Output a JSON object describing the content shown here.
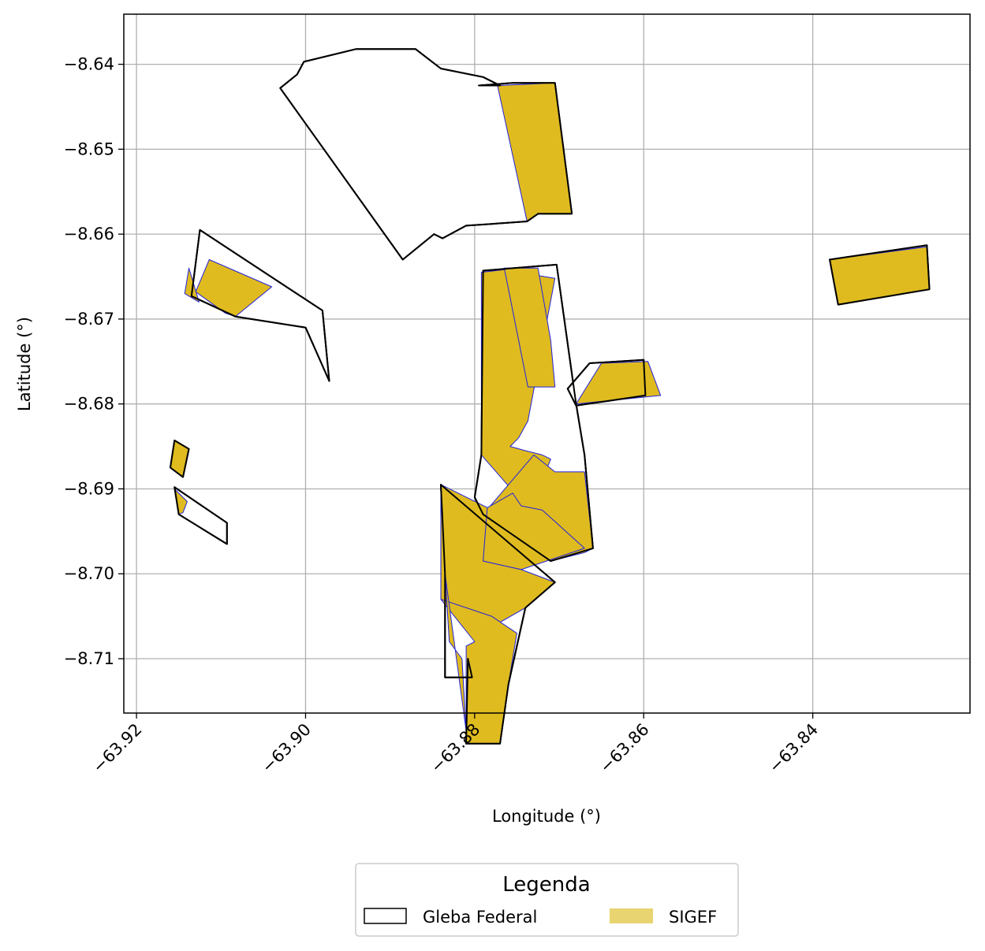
{
  "chart_data": {
    "type": "map",
    "xlabel": "Longitude (°)",
    "ylabel": "Latitude (°)",
    "xlim": [
      -63.9215,
      -63.8214
    ],
    "ylim": [
      -8.7164,
      -8.6341
    ],
    "xticks": [
      -63.92,
      -63.9,
      -63.88,
      -63.86,
      -63.84
    ],
    "xtick_labels": [
      "−63.92",
      "−63.90",
      "−63.88",
      "−63.86",
      "−63.84"
    ],
    "yticks": [
      -8.64,
      -8.65,
      -8.66,
      -8.67,
      -8.68,
      -8.69,
      -8.7,
      -8.71
    ],
    "ytick_labels": [
      "−8.64",
      "−8.65",
      "−8.66",
      "−8.67",
      "−8.68",
      "−8.69",
      "−8.70",
      "−8.71"
    ],
    "grid": true,
    "colors": {
      "gleba_edge": "#000000",
      "sigef_fill": "#dfbb1f",
      "sigef_edge": "#2222dd",
      "legend_sigef_patch": "#e8d470",
      "grid": "#b0b0b0"
    },
    "legend": {
      "title": "Legenda",
      "placement": "bottom-center",
      "entries": [
        {
          "label": "Gleba Federal",
          "style": "outline"
        },
        {
          "label": "SIGEF",
          "style": "fill"
        }
      ]
    },
    "layers": {
      "sigef": [
        [
          [
            -63.8773,
            -8.6425
          ],
          [
            -63.8705,
            -8.6422
          ],
          [
            -63.8685,
            -8.6576
          ],
          [
            -63.8725,
            -8.6576
          ],
          [
            -63.8738,
            -8.6585
          ],
          [
            -63.8773,
            -8.6425
          ]
        ],
        [
          [
            -63.9114,
            -8.663
          ],
          [
            -63.913,
            -8.6668
          ],
          [
            -63.9095,
            -8.6693
          ],
          [
            -63.9083,
            -8.6697
          ],
          [
            -63.904,
            -8.6662
          ],
          [
            -63.9114,
            -8.663
          ]
        ],
        [
          [
            -63.9138,
            -8.664
          ],
          [
            -63.9143,
            -8.667
          ],
          [
            -63.9126,
            -8.668
          ],
          [
            -63.9135,
            -8.665
          ],
          [
            -63.9138,
            -8.664
          ]
        ],
        [
          [
            -63.8792,
            -8.6645
          ],
          [
            -63.875,
            -8.664
          ],
          [
            -63.8748,
            -8.6645
          ],
          [
            -63.8705,
            -8.6652
          ],
          [
            -63.8737,
            -8.682
          ],
          [
            -63.8748,
            -8.684
          ],
          [
            -63.8758,
            -8.685
          ],
          [
            -63.874,
            -8.6855
          ],
          [
            -63.872,
            -8.686
          ],
          [
            -63.871,
            -8.6865
          ],
          [
            -63.8716,
            -8.688
          ],
          [
            -63.8703,
            -8.689
          ],
          [
            -63.8707,
            -8.6905
          ],
          [
            -63.8735,
            -8.6925
          ],
          [
            -63.8792,
            -8.686
          ],
          [
            -63.8792,
            -8.6645
          ]
        ],
        [
          [
            -63.8765,
            -8.664
          ],
          [
            -63.8725,
            -8.664
          ],
          [
            -63.871,
            -8.6725
          ],
          [
            -63.8705,
            -8.678
          ],
          [
            -63.8737,
            -8.678
          ],
          [
            -63.8765,
            -8.664
          ]
        ],
        [
          [
            -63.865,
            -8.6752
          ],
          [
            -63.8595,
            -8.675
          ],
          [
            -63.858,
            -8.679
          ],
          [
            -63.868,
            -8.68
          ],
          [
            -63.865,
            -8.6752
          ]
        ],
        [
          [
            -63.838,
            -8.663
          ],
          [
            -63.8265,
            -8.6615
          ],
          [
            -63.8262,
            -8.6665
          ],
          [
            -63.837,
            -8.6683
          ],
          [
            -63.838,
            -8.663
          ]
        ],
        [
          [
            -63.9155,
            -8.6843
          ],
          [
            -63.916,
            -8.6875
          ],
          [
            -63.9145,
            -8.6886
          ],
          [
            -63.9138,
            -8.6853
          ],
          [
            -63.9155,
            -8.6843
          ]
        ],
        [
          [
            -63.9155,
            -8.69
          ],
          [
            -63.915,
            -8.693
          ],
          [
            -63.9145,
            -8.6928
          ],
          [
            -63.914,
            -8.6915
          ],
          [
            -63.9155,
            -8.69
          ]
        ],
        [
          [
            -63.873,
            -8.686
          ],
          [
            -63.8705,
            -8.688
          ],
          [
            -63.867,
            -8.688
          ],
          [
            -63.866,
            -8.697
          ],
          [
            -63.867,
            -8.6975
          ],
          [
            -63.871,
            -8.6985
          ],
          [
            -63.879,
            -8.693
          ],
          [
            -63.873,
            -8.686
          ]
        ],
        [
          [
            -63.879,
            -8.6925
          ],
          [
            -63.8755,
            -8.6905
          ],
          [
            -63.8745,
            -8.692
          ],
          [
            -63.872,
            -8.6925
          ],
          [
            -63.867,
            -8.697
          ],
          [
            -63.8745,
            -8.6995
          ],
          [
            -63.879,
            -8.6985
          ],
          [
            -63.879,
            -8.6925
          ]
        ],
        [
          [
            -63.884,
            -8.6895
          ],
          [
            -63.8785,
            -8.6922
          ],
          [
            -63.879,
            -8.6985
          ],
          [
            -63.8745,
            -8.6995
          ],
          [
            -63.8705,
            -8.701
          ],
          [
            -63.874,
            -8.704
          ],
          [
            -63.8775,
            -8.706
          ],
          [
            -63.879,
            -8.708
          ],
          [
            -63.884,
            -8.703
          ],
          [
            -63.884,
            -8.6895
          ]
        ],
        [
          [
            -63.884,
            -8.703
          ],
          [
            -63.88,
            -8.708
          ],
          [
            -63.881,
            -8.7085
          ],
          [
            -63.881,
            -8.72
          ],
          [
            -63.877,
            -8.72
          ],
          [
            -63.876,
            -8.713
          ],
          [
            -63.875,
            -8.707
          ],
          [
            -63.878,
            -8.705
          ],
          [
            -63.884,
            -8.703
          ]
        ],
        [
          [
            -63.8835,
            -8.7
          ],
          [
            -63.883,
            -8.708
          ],
          [
            -63.8815,
            -8.71
          ],
          [
            -63.881,
            -8.7185
          ],
          [
            -63.8835,
            -8.7
          ]
        ]
      ],
      "gleba_federal": [
        [
          [
            -63.9002,
            -8.6397
          ],
          [
            -63.894,
            -8.6382
          ],
          [
            -63.887,
            -8.6382
          ],
          [
            -63.884,
            -8.6405
          ],
          [
            -63.879,
            -8.6415
          ],
          [
            -63.877,
            -8.6425
          ],
          [
            -63.8795,
            -8.6425
          ],
          [
            -63.8755,
            -8.6422
          ],
          [
            -63.8705,
            -8.6422
          ],
          [
            -63.8685,
            -8.6576
          ],
          [
            -63.8725,
            -8.6576
          ],
          [
            -63.8738,
            -8.6585
          ],
          [
            -63.878,
            -8.6588
          ],
          [
            -63.881,
            -8.659
          ],
          [
            -63.8838,
            -8.6605
          ],
          [
            -63.8848,
            -8.66
          ],
          [
            -63.8885,
            -8.663
          ],
          [
            -63.903,
            -8.6428
          ],
          [
            -63.901,
            -8.6412
          ],
          [
            -63.9002,
            -8.6397
          ]
        ],
        [
          [
            -63.9125,
            -8.6595
          ],
          [
            -63.9135,
            -8.6673
          ],
          [
            -63.9083,
            -8.6697
          ],
          [
            -63.9,
            -8.671
          ],
          [
            -63.8972,
            -8.6773
          ],
          [
            -63.898,
            -8.669
          ],
          [
            -63.9125,
            -8.6595
          ]
        ],
        [
          [
            -63.879,
            -8.6643
          ],
          [
            -63.8703,
            -8.6636
          ],
          [
            -63.868,
            -8.68
          ],
          [
            -63.867,
            -8.686
          ],
          [
            -63.866,
            -8.697
          ],
          [
            -63.871,
            -8.6985
          ],
          [
            -63.879,
            -8.693
          ],
          [
            -63.88,
            -8.691
          ],
          [
            -63.8792,
            -8.686
          ],
          [
            -63.879,
            -8.6643
          ]
        ],
        [
          [
            -63.884,
            -8.6895
          ],
          [
            -63.8835,
            -8.7
          ],
          [
            -63.8835,
            -8.7122
          ],
          [
            -63.8803,
            -8.7122
          ],
          [
            -63.8808,
            -8.71
          ],
          [
            -63.881,
            -8.72
          ],
          [
            -63.877,
            -8.72
          ],
          [
            -63.876,
            -8.713
          ],
          [
            -63.874,
            -8.704
          ],
          [
            -63.8705,
            -8.701
          ],
          [
            -63.884,
            -8.6895
          ]
        ],
        [
          [
            -63.8664,
            -8.6752
          ],
          [
            -63.86,
            -8.6748
          ],
          [
            -63.8598,
            -8.679
          ],
          [
            -63.868,
            -8.6802
          ],
          [
            -63.869,
            -8.6782
          ],
          [
            -63.8664,
            -8.6752
          ]
        ],
        [
          [
            -63.838,
            -8.663
          ],
          [
            -63.8265,
            -8.6613
          ],
          [
            -63.8262,
            -8.6665
          ],
          [
            -63.837,
            -8.6683
          ],
          [
            -63.838,
            -8.663
          ]
        ],
        [
          [
            -63.9155,
            -8.6843
          ],
          [
            -63.916,
            -8.6875
          ],
          [
            -63.9145,
            -8.6886
          ],
          [
            -63.9138,
            -8.6853
          ],
          [
            -63.9155,
            -8.6843
          ]
        ],
        [
          [
            -63.9155,
            -8.6898
          ],
          [
            -63.915,
            -8.693
          ],
          [
            -63.9093,
            -8.6965
          ],
          [
            -63.9093,
            -8.694
          ],
          [
            -63.9155,
            -8.6898
          ]
        ]
      ]
    }
  }
}
